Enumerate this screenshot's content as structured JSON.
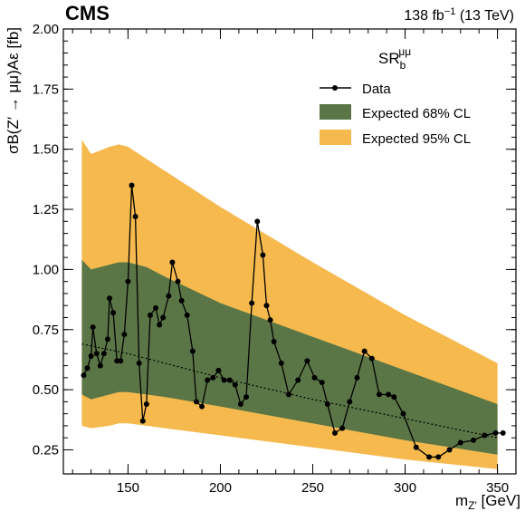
{
  "header": {
    "experiment": "CMS",
    "lumi_value": "138",
    "lumi_unit": "fb",
    "lumi_exp": "−1",
    "energy": "(13 TeV)"
  },
  "chart_data": {
    "type": "line",
    "xlabel": "m",
    "xlabel_sub": "Z′",
    "xlabel_unit": "[GeV]",
    "ylabel": "σB(Z′ → μμ)Aε [fb]",
    "xlim": [
      115,
      360
    ],
    "ylim": [
      0.15,
      2.0
    ],
    "x_ticks": [
      150,
      200,
      250,
      300,
      350
    ],
    "x_tick_labels": [
      "150",
      "200",
      "250",
      "300",
      "350"
    ],
    "y_ticks": [
      0.25,
      0.5,
      0.75,
      1.0,
      1.25,
      1.5,
      1.75,
      2.0
    ],
    "y_tick_labels": [
      "0.25",
      "0.50",
      "0.75",
      "1.00",
      "1.25",
      "1.50",
      "1.75",
      "2.00"
    ],
    "legend": {
      "title": "SR",
      "title_sub": "b",
      "title_sup": "μμ",
      "position": "top-right",
      "entries": [
        "Data",
        "Expected 68% CL",
        "Expected 95% CL"
      ]
    },
    "colors": {
      "band95": "#F5B94D",
      "band68": "#5A7646",
      "data": "#000000",
      "expected": "#000000"
    },
    "band_x": [
      125,
      130,
      140,
      145,
      150,
      160,
      170,
      200,
      250,
      300,
      350
    ],
    "band95_upper": [
      1.54,
      1.48,
      1.51,
      1.52,
      1.51,
      1.46,
      1.41,
      1.26,
      1.03,
      0.81,
      0.61
    ],
    "band95_lower": [
      0.35,
      0.34,
      0.35,
      0.36,
      0.36,
      0.35,
      0.34,
      0.31,
      0.26,
      0.21,
      0.17
    ],
    "band68_upper": [
      1.04,
      1.0,
      1.02,
      1.03,
      1.03,
      1.01,
      0.97,
      0.86,
      0.72,
      0.58,
      0.44
    ],
    "band68_lower": [
      0.48,
      0.46,
      0.48,
      0.49,
      0.49,
      0.48,
      0.47,
      0.43,
      0.36,
      0.29,
      0.23
    ],
    "expected_x": [
      125,
      150,
      200,
      250,
      300,
      350
    ],
    "expected_y": [
      0.69,
      0.65,
      0.55,
      0.46,
      0.38,
      0.3
    ],
    "data_x": [
      126,
      128,
      130,
      131,
      133,
      135,
      137,
      139,
      140,
      142,
      144,
      146,
      148,
      150,
      152,
      154,
      156,
      158,
      160,
      162,
      165,
      167,
      169,
      172,
      174,
      177,
      179,
      182,
      185,
      187,
      190,
      193,
      196,
      199,
      202,
      205,
      208,
      211,
      214,
      217,
      220,
      223,
      225,
      227,
      229,
      233,
      237,
      242,
      247,
      251,
      255,
      258,
      262,
      266,
      270,
      274,
      278,
      282,
      286,
      291,
      294,
      299,
      306,
      313,
      318,
      324,
      330,
      337,
      343,
      349,
      353
    ],
    "data_y": [
      0.56,
      0.59,
      0.64,
      0.76,
      0.65,
      0.6,
      0.65,
      0.71,
      0.88,
      0.82,
      0.62,
      0.62,
      0.73,
      0.95,
      1.35,
      1.22,
      0.61,
      0.37,
      0.44,
      0.81,
      0.84,
      0.77,
      0.8,
      0.89,
      1.03,
      0.95,
      0.87,
      0.81,
      0.66,
      0.45,
      0.43,
      0.54,
      0.55,
      0.58,
      0.54,
      0.54,
      0.52,
      0.44,
      0.47,
      0.86,
      1.2,
      1.06,
      0.85,
      0.79,
      0.7,
      0.61,
      0.48,
      0.54,
      0.62,
      0.55,
      0.53,
      0.44,
      0.32,
      0.34,
      0.45,
      0.55,
      0.66,
      0.63,
      0.48,
      0.48,
      0.47,
      0.4,
      0.26,
      0.22,
      0.22,
      0.25,
      0.28,
      0.29,
      0.31,
      0.32,
      0.32
    ]
  }
}
